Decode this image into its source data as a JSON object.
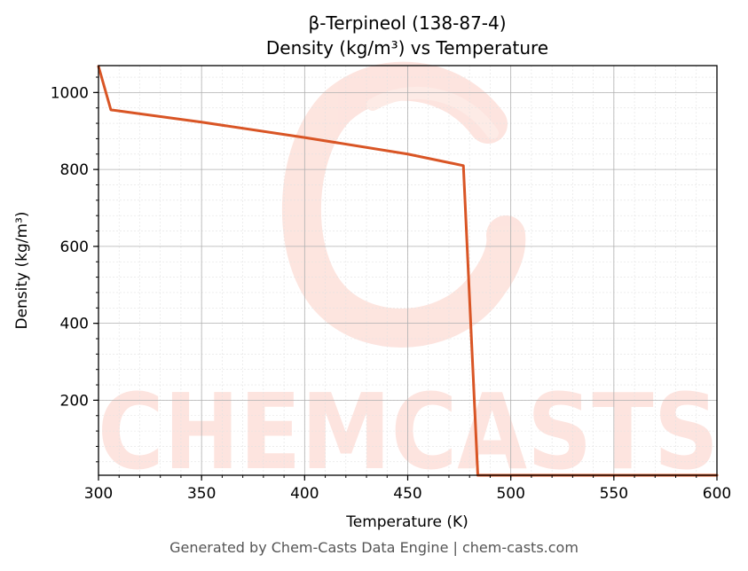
{
  "chart_data": {
    "type": "line",
    "title": "β-Terpineol (138-87-4)",
    "subtitle": "Density (kg/m³) vs Temperature",
    "xlabel": "Temperature (K)",
    "ylabel": "Density (kg/m³)",
    "xlim": [
      300,
      600
    ],
    "ylim": [
      5,
      1070
    ],
    "xticks": [
      300,
      350,
      400,
      450,
      500,
      550,
      600
    ],
    "yticks": [
      200,
      400,
      600,
      800,
      1000
    ],
    "grid": true,
    "legend": "none",
    "series": [
      {
        "color": "#d95525",
        "x": [
          300,
          306,
          350,
          400,
          450,
          477,
          484,
          490,
          600
        ],
        "y": [
          1068,
          955,
          923,
          883,
          840,
          810,
          5,
          5,
          5
        ]
      }
    ]
  },
  "watermark": {
    "text": "CHEMCASTS",
    "color": "#fde2dc"
  },
  "footer": "Generated by Chem-Casts Data Engine | chem-casts.com"
}
